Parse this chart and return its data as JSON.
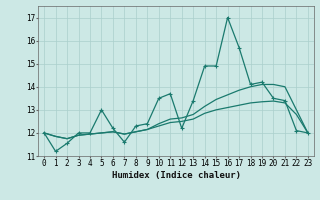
{
  "xlabel": "Humidex (Indice chaleur)",
  "bg_color": "#cce8e5",
  "grid_color": "#aacfcc",
  "line_color": "#1a7a6e",
  "x_main": [
    0,
    1,
    2,
    3,
    4,
    5,
    6,
    7,
    8,
    9,
    10,
    11,
    12,
    13,
    14,
    15,
    16,
    17,
    18,
    19,
    20,
    21,
    22,
    23
  ],
  "y_main": [
    12.0,
    11.2,
    11.55,
    12.0,
    12.0,
    13.0,
    12.2,
    11.6,
    12.3,
    12.4,
    13.5,
    13.7,
    12.2,
    13.4,
    14.9,
    14.9,
    17.0,
    15.7,
    14.1,
    14.2,
    13.5,
    13.4,
    12.1,
    12.0
  ],
  "x_trend": [
    0,
    1,
    2,
    3,
    4,
    5,
    6,
    7,
    8,
    9,
    10,
    11,
    12,
    13,
    14,
    15,
    16,
    17,
    18,
    19,
    20,
    21,
    22,
    23
  ],
  "y_trend1": [
    12.0,
    11.85,
    11.75,
    11.9,
    11.95,
    12.0,
    12.05,
    11.95,
    12.05,
    12.15,
    12.4,
    12.6,
    12.65,
    12.8,
    13.15,
    13.45,
    13.65,
    13.85,
    14.0,
    14.1,
    14.1,
    14.0,
    13.0,
    12.0
  ],
  "y_trend2": [
    12.0,
    11.85,
    11.75,
    11.9,
    11.95,
    12.0,
    12.05,
    11.95,
    12.05,
    12.15,
    12.3,
    12.45,
    12.5,
    12.6,
    12.85,
    13.0,
    13.1,
    13.2,
    13.3,
    13.35,
    13.38,
    13.3,
    12.8,
    12.0
  ],
  "xlim": [
    -0.5,
    23.5
  ],
  "ylim": [
    11.0,
    17.5
  ],
  "yticks": [
    11,
    12,
    13,
    14,
    15,
    16,
    17
  ],
  "xticks": [
    0,
    1,
    2,
    3,
    4,
    5,
    6,
    7,
    8,
    9,
    10,
    11,
    12,
    13,
    14,
    15,
    16,
    17,
    18,
    19,
    20,
    21,
    22,
    23
  ],
  "tick_fontsize": 5.5,
  "xlabel_fontsize": 6.5
}
